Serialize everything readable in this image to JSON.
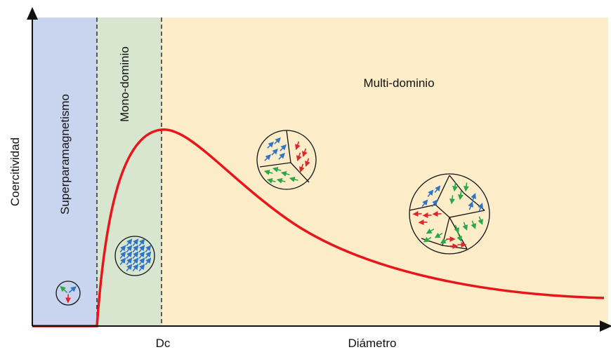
{
  "y_axis_label": "Coercitividad",
  "x_axis_label": "Diámetro",
  "critical_diameter_label": "Dc",
  "regions": [
    {
      "label": "Superparamagnetismo"
    },
    {
      "label": "Mono-dominio"
    },
    {
      "label": "Multi-dominio"
    }
  ]
}
